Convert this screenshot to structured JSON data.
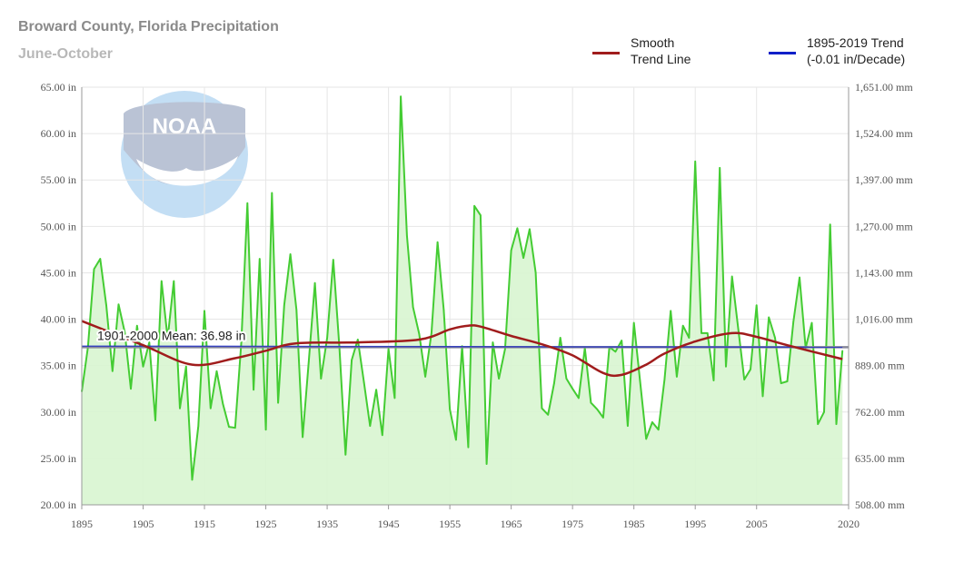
{
  "header": {
    "title": "Broward County, Florida Precipitation",
    "subtitle": "June-October"
  },
  "legend": {
    "items": [
      {
        "line1": "Smooth",
        "line2": "Trend Line",
        "color": "#a01c1c"
      },
      {
        "line1": "1895-2019 Trend",
        "line2": "(-0.01 in/Decade)",
        "color": "#1020c8"
      }
    ]
  },
  "logo": {
    "text": "NOAA"
  },
  "colors": {
    "data_line": "#44cc33",
    "data_fill": "#d8f5d0",
    "smooth": "#a01c1c",
    "trend": "#1020c8",
    "mean": "#888899",
    "grid": "#e6e6e6"
  },
  "chart_data": {
    "type": "area",
    "title": "Broward County, Florida Precipitation",
    "subtitle": "June-October",
    "xlim": [
      1895,
      2020
    ],
    "ylim": [
      20,
      65
    ],
    "x_ticks": [
      "1895",
      "1905",
      "1915",
      "1925",
      "1935",
      "1945",
      "1955",
      "1965",
      "1975",
      "1985",
      "1995",
      "2005",
      "2020"
    ],
    "y_ticks_left": [
      "20.00 in",
      "25.00 in",
      "30.00 in",
      "35.00 in",
      "40.00 in",
      "45.00 in",
      "50.00 in",
      "55.00 in",
      "60.00 in",
      "65.00 in"
    ],
    "y_ticks_right": [
      "508.00 mm",
      "635.00 mm",
      "762.00 mm",
      "889.00 mm",
      "1,016.00 mm",
      "1,143.00 mm",
      "1,270.00 mm",
      "1,397.00 mm",
      "1,524.00 mm",
      "1,651.00 mm"
    ],
    "grid": true,
    "legend_position": "top-right",
    "mean_label": "1901-2000 Mean: 36.98 in",
    "mean_value": 36.98,
    "series": [
      {
        "name": "precipitation",
        "x": [
          1895,
          1896,
          1897,
          1898,
          1899,
          1900,
          1901,
          1902,
          1903,
          1904,
          1905,
          1906,
          1907,
          1908,
          1909,
          1910,
          1911,
          1912,
          1913,
          1914,
          1915,
          1916,
          1917,
          1918,
          1919,
          1920,
          1921,
          1922,
          1923,
          1924,
          1925,
          1926,
          1927,
          1928,
          1929,
          1930,
          1931,
          1932,
          1933,
          1934,
          1935,
          1936,
          1937,
          1938,
          1939,
          1940,
          1941,
          1942,
          1943,
          1944,
          1945,
          1946,
          1947,
          1948,
          1949,
          1950,
          1951,
          1952,
          1953,
          1954,
          1955,
          1956,
          1957,
          1958,
          1959,
          1960,
          1961,
          1962,
          1963,
          1964,
          1965,
          1966,
          1967,
          1968,
          1969,
          1970,
          1971,
          1972,
          1973,
          1974,
          1975,
          1976,
          1977,
          1978,
          1979,
          1980,
          1981,
          1982,
          1983,
          1984,
          1985,
          1986,
          1987,
          1988,
          1989,
          1990,
          1991,
          1992,
          1993,
          1994,
          1995,
          1996,
          1997,
          1998,
          1999,
          2000,
          2001,
          2002,
          2003,
          2004,
          2005,
          2006,
          2007,
          2008,
          2009,
          2010,
          2011,
          2012,
          2013,
          2014,
          2015,
          2016,
          2017,
          2018,
          2019
        ],
        "values": [
          32.2,
          37.0,
          45.4,
          46.5,
          41.5,
          34.4,
          41.6,
          38.6,
          32.5,
          39.3,
          34.9,
          37.5,
          29.1,
          44.1,
          37.9,
          44.1,
          30.4,
          34.9,
          22.7,
          28.5,
          40.9,
          30.4,
          34.4,
          30.9,
          28.4,
          28.3,
          37.5,
          52.5,
          32.4,
          46.5,
          28.1,
          53.6,
          31.0,
          41.5,
          47.0,
          41.0,
          27.3,
          35.4,
          43.9,
          33.6,
          38.0,
          46.4,
          36.9,
          25.4,
          35.6,
          37.8,
          33.2,
          28.5,
          32.4,
          27.5,
          36.8,
          31.5,
          64.0,
          49.0,
          41.3,
          38.4,
          33.8,
          38.5,
          48.3,
          41.0,
          30.3,
          27.0,
          37.1,
          26.2,
          52.2,
          51.2,
          24.4,
          37.5,
          33.6,
          36.8,
          47.4,
          49.8,
          46.6,
          49.7,
          45.0,
          30.4,
          29.7,
          33.1,
          38.0,
          33.6,
          32.5,
          31.5,
          36.9,
          31.0,
          30.3,
          29.4,
          37.0,
          36.5,
          37.7,
          28.5,
          39.6,
          33.4,
          27.1,
          28.9,
          28.1,
          33.5,
          40.9,
          33.8,
          39.3,
          38.0,
          57.0,
          38.5,
          38.5,
          33.4,
          56.3,
          34.9,
          44.6,
          39.0,
          33.5,
          34.6,
          41.5,
          31.7,
          40.2,
          38.0,
          33.1,
          33.3,
          39.7,
          44.5,
          36.9,
          39.6,
          28.7,
          30.0,
          50.2,
          28.7,
          36.6
        ]
      },
      {
        "name": "Smooth Trend Line",
        "x": [
          1895,
          1905,
          1913,
          1920,
          1925,
          1930,
          1940,
          1950,
          1955,
          1958,
          1960,
          1965,
          1970,
          1975,
          1980,
          1983,
          1987,
          1990,
          1995,
          2001,
          2005,
          2010,
          2019
        ],
        "values": [
          39.8,
          37.2,
          35.1,
          35.8,
          36.6,
          37.4,
          37.5,
          37.8,
          38.9,
          39.3,
          39.2,
          38.2,
          37.3,
          36.1,
          34.2,
          34.0,
          35.1,
          36.3,
          37.6,
          38.5,
          38.1,
          37.2,
          35.7
        ]
      },
      {
        "name": "1895-2019 Trend",
        "x": [
          1895,
          2019
        ],
        "values": [
          37.1,
          36.98
        ]
      }
    ]
  }
}
